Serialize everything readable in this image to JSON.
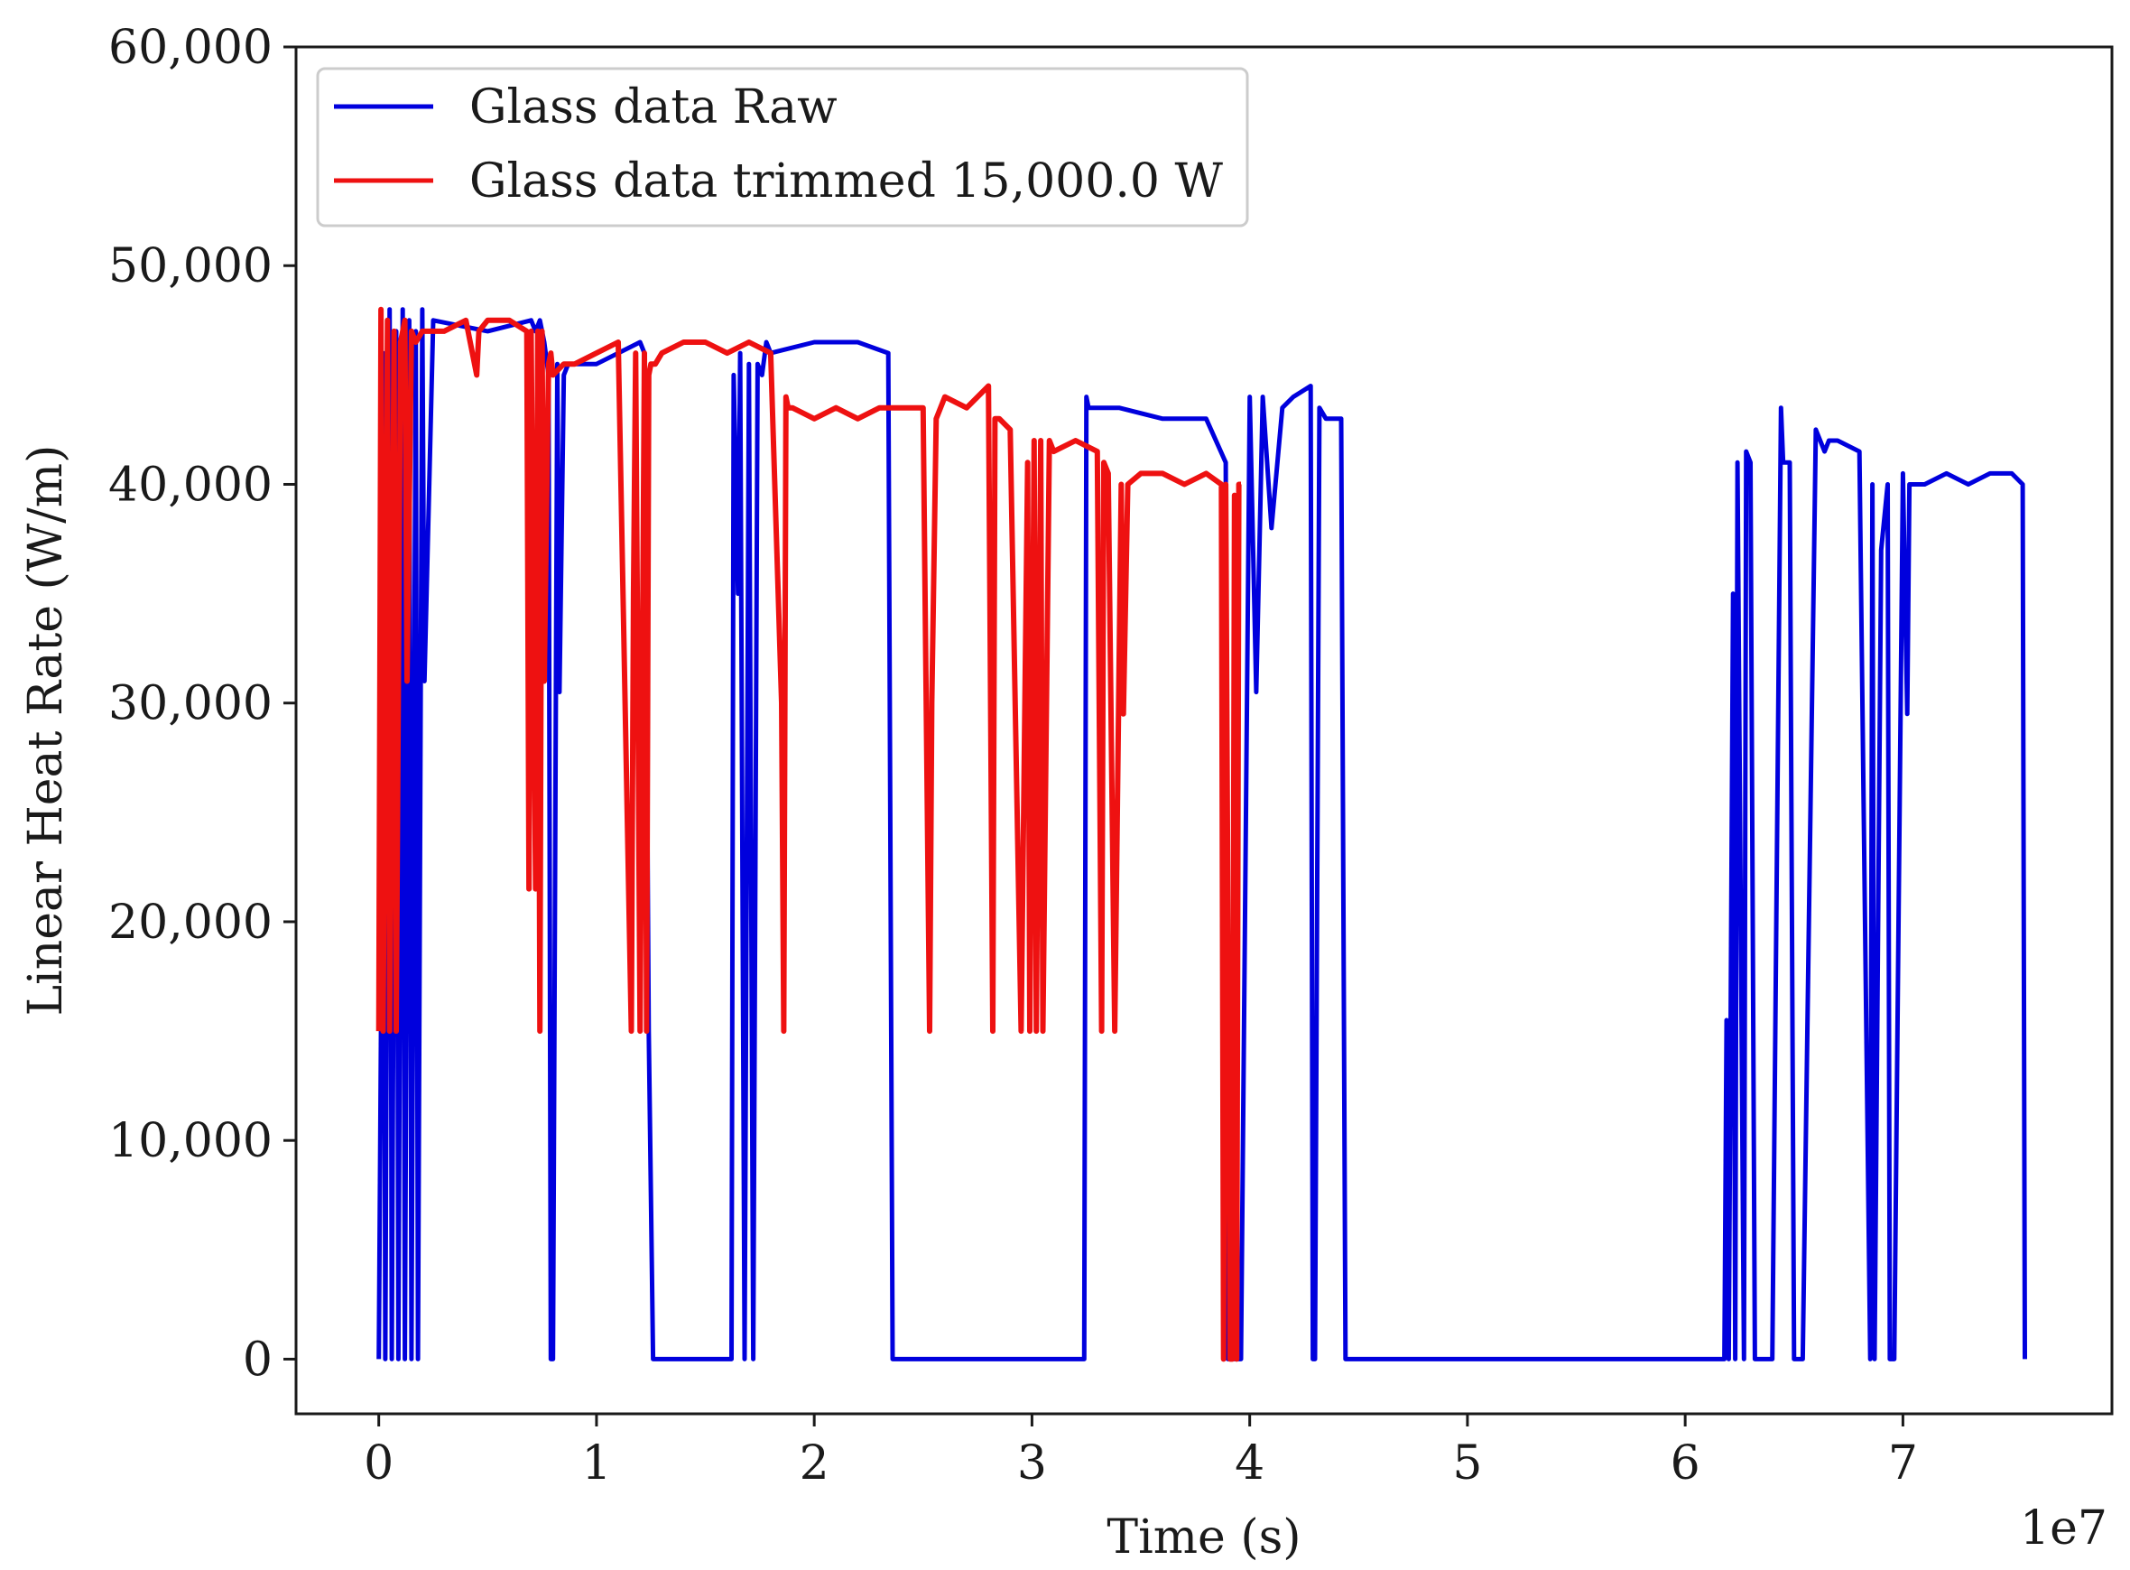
{
  "chart_data": {
    "type": "line",
    "title": "",
    "xlabel": "Time (s)",
    "ylabel": "Linear Heat Rate (W/m)",
    "x_multiplier_label": "1e7",
    "xlim": [
      -0.38,
      7.96
    ],
    "ylim": [
      -2500,
      60000
    ],
    "x_ticks": [
      0,
      1,
      2,
      3,
      4,
      5,
      6,
      7
    ],
    "x_tick_labels": [
      "0",
      "1",
      "2",
      "3",
      "4",
      "5",
      "6",
      "7"
    ],
    "y_ticks": [
      0,
      10000,
      20000,
      30000,
      40000,
      50000,
      60000
    ],
    "y_tick_labels": [
      "0",
      "10,000",
      "20,000",
      "30,000",
      "40,000",
      "50,000",
      "60,000"
    ],
    "grid": false,
    "legend_position": "top-left",
    "colors": {
      "raw": "#0000dd",
      "trimmed": "#ee1111",
      "axis": "#1a1a1a",
      "legend_border": "#cccccc"
    },
    "series": [
      {
        "name": "Glass data Raw",
        "color": "#0000dd",
        "x": [
          0,
          0.01,
          0.02,
          0.03,
          0.05,
          0.06,
          0.08,
          0.09,
          0.11,
          0.12,
          0.14,
          0.15,
          0.17,
          0.18,
          0.2,
          0.21,
          0.25,
          0.5,
          0.7,
          0.72,
          0.74,
          0.76,
          0.78,
          0.79,
          0.8,
          0.82,
          0.83,
          0.85,
          0.87,
          1.0,
          1.2,
          1.22,
          1.24,
          1.26,
          1.27,
          1.3,
          1.4,
          1.55,
          1.62,
          1.63,
          1.65,
          1.66,
          1.68,
          1.7,
          1.72,
          1.74,
          1.76,
          1.78,
          1.8,
          2.0,
          2.2,
          2.34,
          2.36,
          2.38,
          2.39,
          2.5,
          3.0,
          3.24,
          3.25,
          3.26,
          3.4,
          3.6,
          3.8,
          3.89,
          3.9,
          3.93,
          3.96,
          4.0,
          4.03,
          4.06,
          4.1,
          4.15,
          4.2,
          4.28,
          4.29,
          4.3,
          4.32,
          4.35,
          4.42,
          4.44,
          4.45,
          5.0,
          5.5,
          6.0,
          6.18,
          6.19,
          6.2,
          6.22,
          6.23,
          6.24,
          6.27,
          6.28,
          6.3,
          6.32,
          6.35,
          6.36,
          6.4,
          6.44,
          6.45,
          6.48,
          6.5,
          6.52,
          6.54,
          6.6,
          6.64,
          6.66,
          6.7,
          6.8,
          6.85,
          6.86,
          6.87,
          6.9,
          6.93,
          6.94,
          6.95,
          6.96,
          7.0,
          7.02,
          7.03,
          7.05,
          7.1,
          7.2,
          7.3,
          7.4,
          7.5,
          7.55,
          7.56
        ],
        "y": [
          0,
          15000,
          46000,
          0,
          48000,
          0,
          47000,
          0,
          48000,
          0,
          47500,
          0,
          47000,
          0,
          48000,
          31000,
          47500,
          47000,
          47500,
          47000,
          47500,
          46500,
          45000,
          0,
          0,
          45500,
          30500,
          45000,
          45500,
          45500,
          46500,
          46000,
          15000,
          0,
          0,
          0,
          0,
          0,
          0,
          45000,
          35000,
          46000,
          0,
          45500,
          0,
          45500,
          45000,
          46500,
          46000,
          46500,
          46500,
          46000,
          0,
          0,
          0,
          0,
          0,
          0,
          44000,
          43500,
          43500,
          43000,
          43000,
          41000,
          0,
          0,
          0,
          44000,
          30500,
          44000,
          38000,
          43500,
          44000,
          44500,
          0,
          0,
          43500,
          43000,
          43000,
          0,
          0,
          0,
          0,
          0,
          0,
          15500,
          0,
          35000,
          0,
          41000,
          0,
          41500,
          41000,
          0,
          0,
          0,
          0,
          43500,
          41000,
          41000,
          0,
          0,
          0,
          42500,
          41500,
          42000,
          42000,
          41500,
          0,
          40000,
          0,
          37000,
          40000,
          0,
          0,
          0,
          40500,
          29500,
          40000,
          40000,
          40000,
          40500,
          40000,
          40500,
          40500,
          40000,
          0
        ]
      },
      {
        "name": "Glass data trimmed 15,000.0 W",
        "color": "#ee1111",
        "x": [
          0,
          0.01,
          0.02,
          0.04,
          0.05,
          0.07,
          0.08,
          0.1,
          0.12,
          0.13,
          0.15,
          0.17,
          0.2,
          0.3,
          0.4,
          0.45,
          0.46,
          0.5,
          0.6,
          0.68,
          0.69,
          0.7,
          0.72,
          0.73,
          0.74,
          0.75,
          0.76,
          0.78,
          0.79,
          0.8,
          0.85,
          0.9,
          1.0,
          1.1,
          1.16,
          1.17,
          1.18,
          1.2,
          1.22,
          1.23,
          1.24,
          1.25,
          1.27,
          1.3,
          1.4,
          1.5,
          1.6,
          1.7,
          1.8,
          1.85,
          1.86,
          1.87,
          1.88,
          1.9,
          2.0,
          2.1,
          2.2,
          2.3,
          2.4,
          2.5,
          2.53,
          2.54,
          2.56,
          2.6,
          2.7,
          2.8,
          2.82,
          2.83,
          2.85,
          2.9,
          2.95,
          2.98,
          2.99,
          3.01,
          3.02,
          3.04,
          3.05,
          3.08,
          3.1,
          3.2,
          3.3,
          3.32,
          3.33,
          3.35,
          3.38,
          3.41,
          3.42,
          3.44,
          3.5,
          3.6,
          3.7,
          3.8,
          3.87,
          3.88,
          3.89,
          3.91,
          3.92,
          3.93,
          3.94,
          3.95,
          3.96
        ],
        "y": [
          15000,
          48000,
          15000,
          47500,
          15000,
          47000,
          15000,
          46500,
          47500,
          31000,
          47000,
          46500,
          47000,
          47000,
          47500,
          45000,
          47000,
          47500,
          47500,
          47000,
          21500,
          47000,
          21500,
          47000,
          15000,
          47000,
          31000,
          45500,
          46000,
          45000,
          45500,
          45500,
          46000,
          46500,
          15000,
          35000,
          46000,
          15000,
          46000,
          15000,
          45000,
          45500,
          45500,
          46000,
          46500,
          46500,
          46000,
          46500,
          46000,
          30000,
          15000,
          44000,
          43500,
          43500,
          43000,
          43500,
          43000,
          43500,
          43500,
          43500,
          15000,
          30000,
          43000,
          44000,
          43500,
          44500,
          15000,
          43000,
          43000,
          42500,
          15000,
          41000,
          15000,
          42000,
          15000,
          42000,
          15000,
          42000,
          41500,
          42000,
          41500,
          15000,
          41000,
          40500,
          15000,
          40000,
          29500,
          40000,
          40500,
          40500,
          40000,
          40500,
          40000,
          0,
          40000,
          0,
          0,
          39500,
          0,
          40000,
          40000
        ]
      }
    ]
  }
}
